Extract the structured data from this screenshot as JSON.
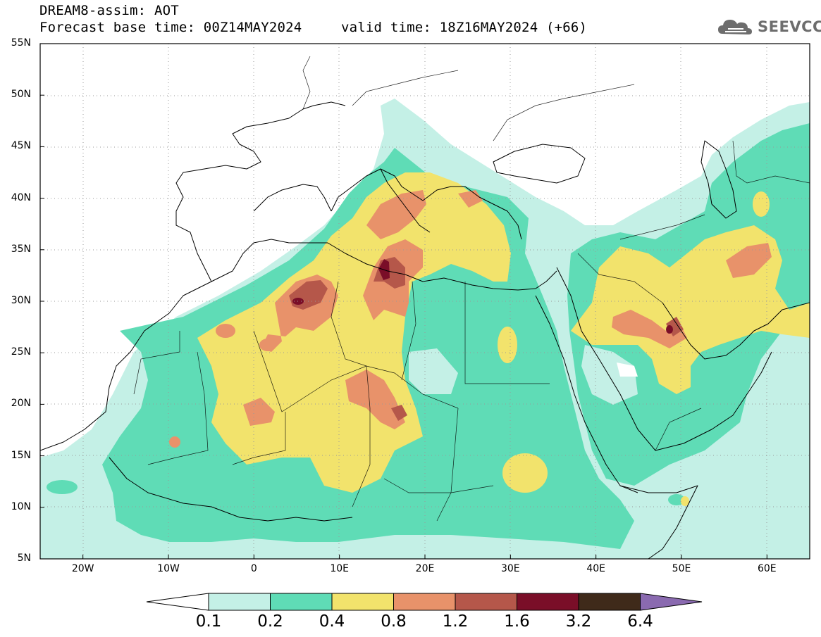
{
  "header": {
    "title_line1": "DREAM8-assim: AOT",
    "title_line2_left": "Forecast base time: 00Z14MAY2024",
    "title_line2_right": "valid time: 18Z16MAY2024 (+66)",
    "logo_text": "SEEVCCC",
    "logo_icon": "cloud-logo-icon"
  },
  "map": {
    "projection": "lat-lon",
    "lon_range": [
      -25,
      65
    ],
    "lat_range": [
      5,
      55
    ],
    "grid": "dotted",
    "lat_labels": [
      "55N",
      "50N",
      "45N",
      "40N",
      "35N",
      "30N",
      "25N",
      "20N",
      "15N",
      "10N",
      "5N"
    ],
    "lat_values": [
      55,
      50,
      45,
      40,
      35,
      30,
      25,
      20,
      15,
      10,
      5
    ],
    "lon_labels": [
      "20W",
      "10W",
      "0",
      "10E",
      "20E",
      "30E",
      "40E",
      "50E",
      "60E"
    ],
    "lon_values": [
      -20,
      -10,
      0,
      10,
      20,
      30,
      40,
      50,
      60
    ]
  },
  "colorbar": {
    "labels": [
      "0.1",
      "0.2",
      "0.4",
      "0.8",
      "1.2",
      "1.6",
      "3.2",
      "6.4"
    ],
    "colors": [
      "#c4f0e6",
      "#5fdcb6",
      "#f2e36c",
      "#e8926a",
      "#b5574a",
      "#7a0e28",
      "#3f2a1a"
    ],
    "under_color": "#ffffff",
    "over_color": "#8a6ab0"
  },
  "colors": {
    "c1": "#c4f0e6",
    "c2": "#5fdcb6",
    "c3": "#f2e36c",
    "c4": "#e8926a",
    "c5": "#b5574a",
    "c6": "#7a0e28",
    "coast": "#000000"
  }
}
